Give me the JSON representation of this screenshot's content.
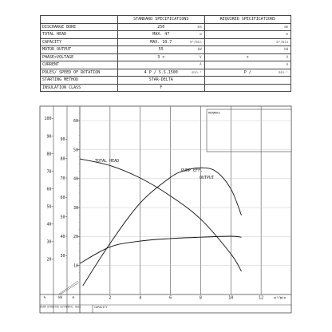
{
  "spec_table": {
    "headers": {
      "standard": "STANDARD SPECIFICATIONS",
      "required": "REQUIRED SPECIFICATIONS"
    },
    "rows": [
      {
        "label": "DISCHARGE BORE",
        "standard": "250",
        "standard_unit": "mm",
        "required_unit": "mm"
      },
      {
        "label": "TOTAL HEAD",
        "standard": "MAX. 47",
        "standard_unit": "m",
        "required_unit": "m"
      },
      {
        "label": "CAPACITY",
        "standard": "MAX. 10.7",
        "standard_unit": "m³/min",
        "required_unit": "m³/min"
      },
      {
        "label": "MOTOR OUTPUT",
        "standard": "55",
        "standard_unit": "kW",
        "required_unit": "kW"
      },
      {
        "label": "PHASE×VOLTAGE",
        "standard": "3  ×",
        "standard_unit": "V",
        "required": "×",
        "required_unit": "V"
      },
      {
        "label": "CURRENT",
        "standard": "",
        "standard_unit": "A",
        "required_unit": "A"
      },
      {
        "label": "POLES/ SPEED OF ROTATION",
        "standard": "4   P /   S.S.1500",
        "standard_unit": "min⁻¹",
        "required": "P /",
        "required_unit": "min⁻¹"
      },
      {
        "label": "STARTING METHOD",
        "standard": "STAR-DELTA",
        "standard_unit": "",
        "required_unit": ""
      },
      {
        "label": "INSULATION CLASS",
        "standard": "F",
        "standard_unit": "",
        "required_unit": ""
      }
    ]
  },
  "remarks_label": "REMARKS",
  "axis_labels": {
    "pump_eff": "%",
    "motor_output": "kW",
    "total_head": "m",
    "x_unit": "m³/min",
    "capacity": "CAPACITY",
    "col_pump_eff": "PUMP EFF.",
    "col_motor_output": "MOTOR OUTPUT",
    "col_total_head": "TOTAL HEAD"
  },
  "chart_data": {
    "type": "line",
    "xlabel": "CAPACITY",
    "x_unit": "m³/min",
    "x_ticks": [
      2,
      4,
      6,
      8,
      10,
      12
    ],
    "xlim": [
      0,
      14
    ],
    "axes": {
      "total_head_m": {
        "ticks": [
          10,
          20,
          30,
          40,
          50,
          60
        ],
        "range": [
          0,
          65
        ]
      },
      "motor_output_kw": {
        "ticks": [
          30,
          40,
          50,
          60,
          70,
          80,
          90
        ],
        "range": [
          10,
          107
        ]
      },
      "pump_eff_pct": {
        "ticks": [
          20,
          30,
          40,
          50,
          60,
          70,
          80,
          90,
          100
        ],
        "range": [
          0,
          107
        ]
      }
    },
    "series": [
      {
        "name": "TOTAL HEAD",
        "axis": "total_head_m",
        "x": [
          0,
          2,
          4,
          6,
          8,
          10,
          10.7
        ],
        "y": [
          46.8,
          44.5,
          40.2,
          34,
          26,
          14,
          8
        ]
      },
      {
        "name": "PUMP EFF.",
        "axis": "pump_eff_pct",
        "x": [
          0.2,
          2,
          4,
          6,
          7,
          8,
          9,
          10,
          10.7
        ],
        "y": [
          5,
          29,
          52,
          66.5,
          70.5,
          72,
          70,
          60,
          45
        ]
      },
      {
        "name": "OUTPUT",
        "axis": "motor_output_kw",
        "x": [
          0,
          2,
          4,
          6,
          8,
          10,
          10.7
        ],
        "y": [
          26,
          34.5,
          37.5,
          38.8,
          39.5,
          40,
          39.5
        ]
      }
    ]
  }
}
